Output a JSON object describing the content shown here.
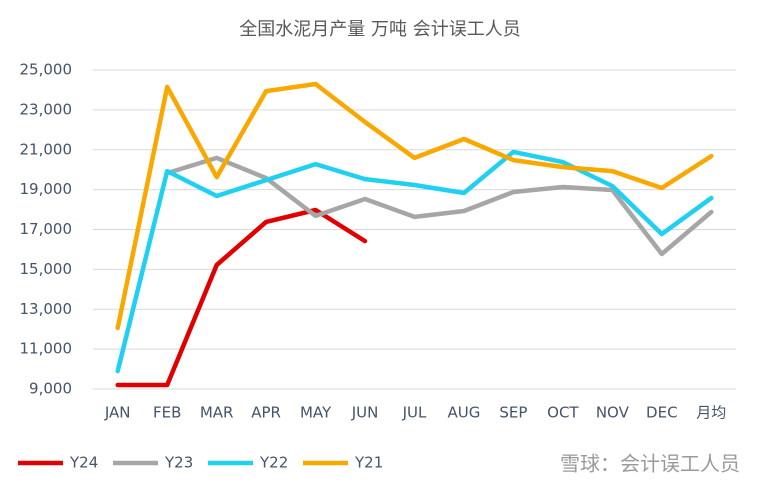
{
  "chart_data": {
    "type": "line",
    "title": "全国水泥月产量 万吨 会计误工人员",
    "watermark": "雪球：会计误工人员",
    "categories": [
      "JAN",
      "FEB",
      "MAR",
      "APR",
      "MAY",
      "JUN",
      "JUL",
      "AUG",
      "SEP",
      "OCT",
      "NOV",
      "DEC",
      "月均"
    ],
    "series": [
      {
        "name": "Y24",
        "color": "#e00000",
        "values": [
          9200,
          9200,
          15220,
          17380,
          17980,
          16420,
          null,
          null,
          null,
          null,
          null,
          null,
          null
        ]
      },
      {
        "name": "Y23",
        "color": "#a6a6a6",
        "values": [
          null,
          19830,
          20590,
          19580,
          17680,
          18530,
          17630,
          17930,
          18880,
          19130,
          18980,
          15770,
          17880
        ]
      },
      {
        "name": "Y22",
        "color": "#1fd0f0",
        "values": [
          9900,
          19930,
          18680,
          19480,
          20280,
          19530,
          19230,
          18830,
          20890,
          20380,
          19180,
          16770,
          18580
        ]
      },
      {
        "name": "Y21",
        "color": "#f9a800",
        "values": [
          12060,
          24150,
          19630,
          23940,
          24300,
          22390,
          20590,
          21540,
          20480,
          20130,
          19930,
          19080,
          20680
        ]
      }
    ],
    "ylim": [
      9000,
      25000
    ],
    "yticks": [
      {
        "value": 9000,
        "label": "9,000"
      },
      {
        "value": 11000,
        "label": "11,000"
      },
      {
        "value": 13000,
        "label": "13,000"
      },
      {
        "value": 15000,
        "label": "15,000"
      },
      {
        "value": 17000,
        "label": "17,000"
      },
      {
        "value": 19000,
        "label": "19,000"
      },
      {
        "value": 21000,
        "label": "21,000"
      },
      {
        "value": 23000,
        "label": "23,000"
      },
      {
        "value": 25000,
        "label": "25,000"
      }
    ],
    "grid": true,
    "legend": "bottom-left"
  }
}
